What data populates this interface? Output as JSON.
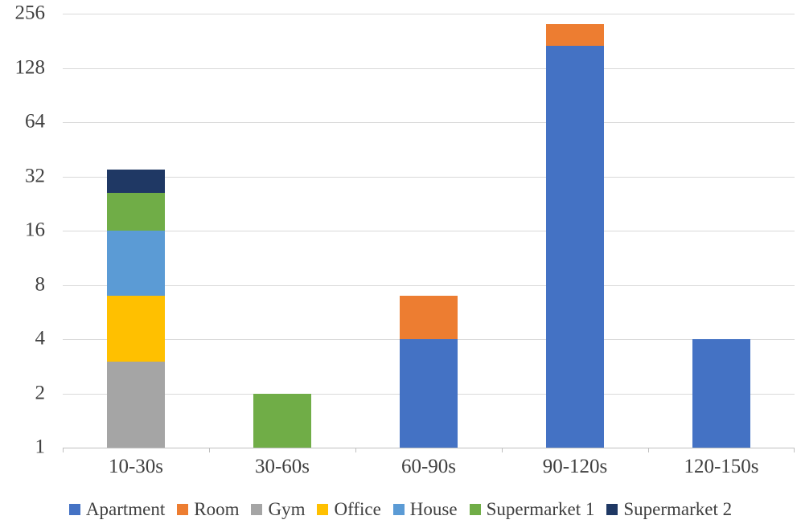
{
  "chart_data": {
    "type": "bar",
    "stacked": true,
    "y_scale": "log2",
    "title": "",
    "xlabel": "",
    "ylabel": "",
    "categories": [
      "10-30s",
      "30-60s",
      "60-90s",
      "90-120s",
      "120-150s"
    ],
    "series": [
      {
        "name": "Apartment",
        "color": "#4472C4",
        "values": [
          0,
          0,
          4,
          170,
          4
        ]
      },
      {
        "name": "Room",
        "color": "#ED7D31",
        "values": [
          0,
          0,
          3,
          55,
          0
        ]
      },
      {
        "name": "Gym",
        "color": "#A5A5A5",
        "values": [
          3,
          0,
          0,
          0,
          0
        ]
      },
      {
        "name": "Office",
        "color": "#FFC000",
        "values": [
          4,
          0,
          0,
          0,
          0
        ]
      },
      {
        "name": "House",
        "color": "#5B9BD5",
        "values": [
          9,
          0,
          0,
          0,
          0
        ]
      },
      {
        "name": "Supermarket 1",
        "color": "#70AD47",
        "values": [
          10,
          2,
          0,
          0,
          0
        ]
      },
      {
        "name": "Supermarket 2",
        "color": "#1F3864",
        "values": [
          9,
          0,
          0,
          0,
          0
        ]
      }
    ],
    "y_ticks": [
      1,
      2,
      4,
      8,
      16,
      32,
      64,
      128,
      256
    ],
    "ylim": [
      1,
      256
    ],
    "baseline": 1,
    "grid": true,
    "legend_position": "bottom",
    "colors": {
      "gridline": "#D9D9D9",
      "axis": "#BFBFBF",
      "text": "#404040",
      "background": "#FFFFFF"
    }
  }
}
